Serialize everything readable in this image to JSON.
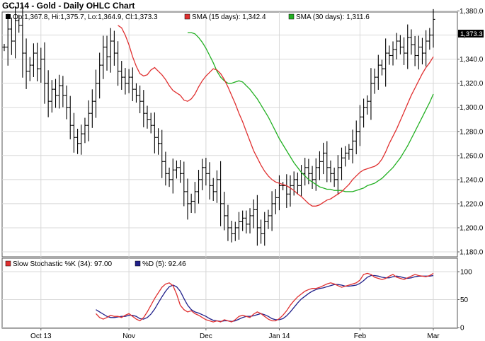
{
  "chart_data": {
    "type": "ohlc",
    "title": "GCJ14 - Gold - Daily OHLC Chart",
    "legend": {
      "ohlc": "Op:1,367.8, Hi:1,375.7, Lo:1,364.9, Cl:1,373.3",
      "sma15": "SMA (15 days): 1,342.4",
      "sma30": "SMA (30 days): 1,311.6",
      "stochK": "Slow Stochastic %K (34): 97.00",
      "stochD": "%D (5): 92.46"
    },
    "last_price_label": "1,373.3",
    "colors": {
      "sma15": "#e03030",
      "sma30": "#22b022",
      "stochK": "#e03030",
      "stochD": "#20208a",
      "bars": "#000000",
      "grid": "#d8d8d8",
      "ohlc_swatch": "#000000"
    },
    "price_axis": {
      "min": 1180,
      "max": 1380,
      "ticks": [
        "1,180.0",
        "1,200.0",
        "1,220.0",
        "1,240.0",
        "1,260.0",
        "1,280.0",
        "1,300.0",
        "1,320.0",
        "1,340.0",
        "1,360.0",
        "1,380.0"
      ]
    },
    "stoch_axis": {
      "min": 0,
      "max": 100,
      "ticks": [
        "0",
        "50",
        "100"
      ]
    },
    "x_labels": [
      {
        "label": "Oct 13",
        "bar": 10
      },
      {
        "label": "Nov",
        "bar": 34
      },
      {
        "label": "Dec",
        "bar": 55
      },
      {
        "label": "Jan 14",
        "bar": 75
      },
      {
        "label": "Feb",
        "bar": 97
      },
      {
        "label": "Mar",
        "bar": 117
      }
    ],
    "close": [
      1350,
      1365,
      1355,
      1372,
      1368,
      1345,
      1330,
      1335,
      1345,
      1332,
      1340,
      1320,
      1305,
      1315,
      1310,
      1318,
      1310,
      1300,
      1285,
      1275,
      1270,
      1278,
      1285,
      1295,
      1305,
      1320,
      1335,
      1350,
      1342,
      1355,
      1345,
      1330,
      1325,
      1320,
      1325,
      1315,
      1310,
      1305,
      1295,
      1290,
      1285,
      1275,
      1270,
      1255,
      1245,
      1240,
      1248,
      1250,
      1245,
      1230,
      1220,
      1222,
      1230,
      1240,
      1250,
      1245,
      1235,
      1230,
      1240,
      1220,
      1210,
      1200,
      1195,
      1200,
      1205,
      1208,
      1203,
      1210,
      1215,
      1200,
      1195,
      1205,
      1210,
      1220,
      1225,
      1235,
      1235,
      1228,
      1235,
      1240,
      1235,
      1245,
      1250,
      1245,
      1240,
      1250,
      1255,
      1262,
      1250,
      1245,
      1240,
      1250,
      1258,
      1262,
      1265,
      1272,
      1280,
      1292,
      1300,
      1305,
      1320,
      1325,
      1335,
      1332,
      1345,
      1343,
      1348,
      1355,
      1350,
      1345,
      1358,
      1352,
      1343,
      1350,
      1345,
      1355,
      1360,
      1373
    ],
    "sma15": [
      1368,
      1366,
      1360,
      1352,
      1342,
      1334,
      1328,
      1326,
      1327,
      1331,
      1333,
      1330,
      1327,
      1323,
      1318,
      1314,
      1312,
      1310,
      1306,
      1305,
      1307,
      1311,
      1317,
      1322,
      1326,
      1329,
      1332,
      1331,
      1328,
      1323,
      1317,
      1310,
      1303,
      1295,
      1288,
      1280,
      1272,
      1264,
      1258,
      1252,
      1247,
      1243,
      1240,
      1238,
      1237,
      1236,
      1235,
      1233,
      1231,
      1228,
      1226,
      1223,
      1220,
      1218,
      1218,
      1219,
      1221,
      1223,
      1224,
      1226,
      1228,
      1230,
      1233,
      1236,
      1240,
      1243,
      1246,
      1248,
      1249,
      1250,
      1251,
      1253,
      1257,
      1263,
      1270,
      1276,
      1282,
      1289,
      1296,
      1303,
      1310,
      1316,
      1322,
      1328,
      1333,
      1337,
      1342
    ],
    "sma15_start": 31,
    "sma30": [
      1362,
      1362,
      1361,
      1358,
      1354,
      1349,
      1343,
      1337,
      1330,
      1325,
      1322,
      1320,
      1320,
      1321,
      1322,
      1321,
      1318,
      1315,
      1311,
      1307,
      1302,
      1297,
      1292,
      1286,
      1280,
      1274,
      1269,
      1264,
      1259,
      1254,
      1250,
      1246,
      1243,
      1240,
      1238,
      1236,
      1234,
      1233,
      1232,
      1232,
      1231,
      1231,
      1231,
      1230,
      1230,
      1230,
      1231,
      1232,
      1233,
      1235,
      1236,
      1237,
      1239,
      1241,
      1244,
      1247,
      1250,
      1254,
      1258,
      1263,
      1268,
      1274,
      1280,
      1286,
      1292,
      1298,
      1304,
      1311
    ],
    "sma30_start": 50,
    "stochK": [
      25,
      18,
      15,
      18,
      22,
      20,
      20,
      18,
      22,
      25,
      20,
      15,
      12,
      18,
      28,
      40,
      52,
      62,
      72,
      78,
      80,
      75,
      60,
      40,
      32,
      28,
      30,
      25,
      22,
      18,
      14,
      12,
      10,
      12,
      10,
      14,
      12,
      10,
      14,
      20,
      22,
      20,
      18,
      24,
      28,
      25,
      20,
      15,
      12,
      12,
      16,
      22,
      30,
      40,
      48,
      55,
      60,
      65,
      68,
      70,
      70,
      72,
      75,
      78,
      80,
      78,
      75,
      72,
      74,
      76,
      78,
      80,
      85,
      95,
      97,
      95,
      90,
      88,
      86,
      88,
      92,
      95,
      90,
      88,
      86,
      89,
      92,
      95,
      93,
      92,
      91,
      93,
      97
    ],
    "stochD": [
      32,
      28,
      24,
      20,
      18,
      18,
      19,
      20,
      20,
      22,
      22,
      20,
      16,
      15,
      18,
      24,
      33,
      44,
      55,
      65,
      73,
      76,
      73,
      65,
      52,
      40,
      32,
      28,
      26,
      23,
      20,
      16,
      13,
      12,
      11,
      12,
      12,
      11,
      12,
      15,
      18,
      20,
      20,
      21,
      23,
      25,
      23,
      20,
      16,
      14,
      14,
      16,
      21,
      28,
      36,
      44,
      51,
      56,
      61,
      65,
      68,
      70,
      71,
      73,
      75,
      77,
      77,
      76,
      74,
      74,
      75,
      76,
      79,
      84,
      90,
      93,
      93,
      92,
      90,
      89,
      89,
      91,
      92,
      91,
      89,
      88,
      89,
      91,
      92,
      92,
      92,
      92,
      93
    ]
  }
}
